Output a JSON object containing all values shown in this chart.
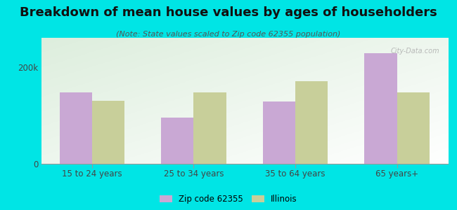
{
  "title": "Breakdown of mean house values by ages of householders",
  "subtitle": "(Note: State values scaled to Zip code 62355 population)",
  "categories": [
    "15 to 24 years",
    "25 to 34 years",
    "35 to 64 years",
    "65 years+"
  ],
  "zip_values": [
    148000,
    95000,
    128000,
    228000
  ],
  "state_values": [
    130000,
    148000,
    170000,
    148000
  ],
  "zip_color": "#c9a8d4",
  "state_color": "#c8cf9a",
  "background_outer": "#00e5e5",
  "ylim": [
    0,
    260000
  ],
  "yticks": [
    0,
    200000
  ],
  "ytick_labels": [
    "0",
    "200k"
  ],
  "legend_zip_label": "Zip code 62355",
  "legend_state_label": "Illinois",
  "title_fontsize": 13,
  "subtitle_fontsize": 8,
  "bar_width": 0.32
}
